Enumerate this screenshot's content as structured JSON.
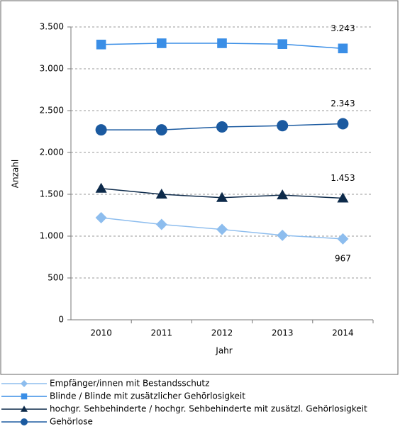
{
  "chart_data": {
    "type": "line",
    "x_label": "Jahr",
    "y_label": "Anzahl",
    "categories": [
      "2010",
      "2011",
      "2012",
      "2013",
      "2014"
    ],
    "series": [
      {
        "name": "Empfänger/innen mit Bestandsschutz",
        "color": "#8dbdee",
        "marker": "diamond",
        "values": [
          1220,
          1140,
          1080,
          1010,
          967
        ],
        "value_labels": [
          null,
          null,
          null,
          null,
          "967"
        ]
      },
      {
        "name": "Blinde / Blinde mit zusätzlicher Gehörlosigkeit",
        "color": "#3a8ee6",
        "marker": "square",
        "values": [
          3290,
          3305,
          3305,
          3295,
          3243
        ],
        "value_labels": [
          null,
          null,
          null,
          null,
          "3.243"
        ]
      },
      {
        "name": "hochgr. Sehbehinderte / hochgr. Sehbehinderte mit zusätzl. Gehörlosigkeit",
        "color": "#0d2a4a",
        "marker": "triangle",
        "values": [
          1570,
          1500,
          1460,
          1490,
          1453
        ],
        "value_labels": [
          null,
          null,
          null,
          null,
          "1.453"
        ]
      },
      {
        "name": "Gehörlose",
        "color": "#1b5aa0",
        "marker": "circle",
        "values": [
          2270,
          2270,
          2305,
          2320,
          2343
        ],
        "value_labels": [
          null,
          null,
          null,
          null,
          "2.343"
        ]
      }
    ],
    "ylim": [
      0,
      3500
    ],
    "yticks": [
      0,
      500,
      {
        "value": 1000,
        "label": "1.000"
      },
      {
        "value": 1500,
        "label": "1.500"
      },
      {
        "value": 2000,
        "label": "2.000"
      },
      {
        "value": 2500,
        "label": "2.500"
      },
      {
        "value": 3000,
        "label": "3.000"
      },
      {
        "value": 3500,
        "label": "3.500"
      }
    ],
    "grid": true
  }
}
